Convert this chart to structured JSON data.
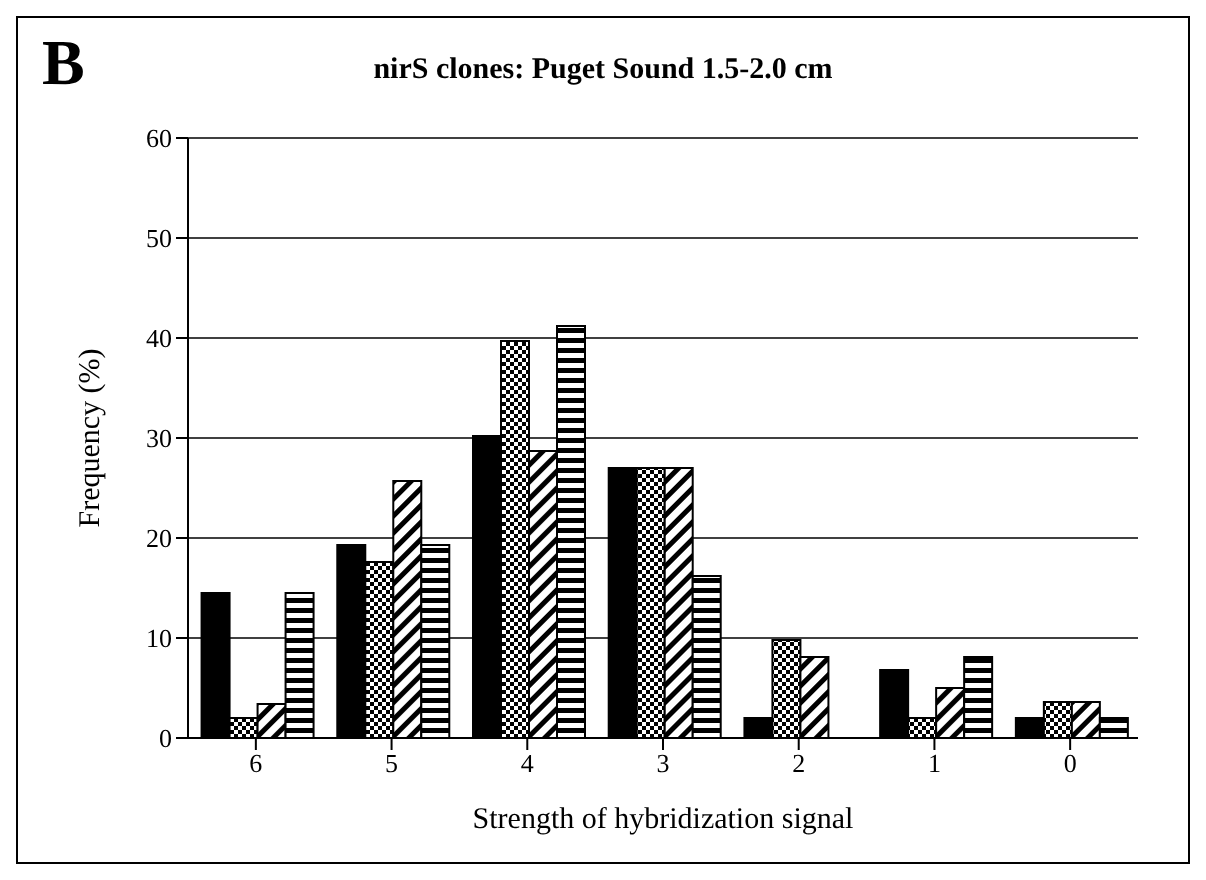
{
  "chart_data": {
    "type": "bar",
    "title": "nirS clones: Puget Sound 1.5-2.0 cm",
    "xlabel": "Strength of hybridization signal",
    "ylabel": "Frequency (%)",
    "annotations": [
      "B"
    ],
    "categories": [
      "6",
      "5",
      "4",
      "3",
      "2",
      "1",
      "0"
    ],
    "series": [
      {
        "color": "#000000",
        "values": [
          14.5,
          19.3,
          30.2,
          27,
          2,
          6.8,
          2
        ]
      },
      {
        "color": "#000000",
        "values": [
          2,
          17.6,
          39.7,
          27,
          9.8,
          2,
          3.6
        ]
      },
      {
        "color": "#000000",
        "values": [
          3.4,
          25.7,
          28.7,
          27,
          8.1,
          5,
          3.6
        ]
      },
      {
        "color": "#000000",
        "values": [
          14.5,
          19.3,
          41.2,
          16.2,
          0,
          8.1,
          2
        ]
      }
    ],
    "ylim": [
      0,
      60
    ],
    "yticks": [
      0,
      10,
      20,
      30,
      40,
      50,
      60
    ],
    "grid": "y"
  }
}
